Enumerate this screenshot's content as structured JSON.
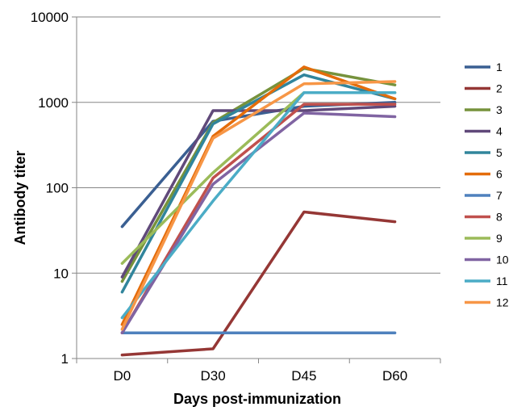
{
  "chart_data": {
    "type": "line",
    "title": "",
    "xlabel": "Days post-immunization",
    "ylabel": "Antibody titer",
    "categories": [
      "D0",
      "D30",
      "D45",
      "D60"
    ],
    "y_scale": "log",
    "ylim": [
      1,
      10000
    ],
    "y_ticks": [
      "1",
      "10",
      "100",
      "1000",
      "10000"
    ],
    "y_tick_values": [
      1,
      10,
      100,
      1000,
      10000
    ],
    "grid": true,
    "legend": "right",
    "series": [
      {
        "name": "1",
        "color": "#3A5F92",
        "values": [
          35,
          600,
          900,
          1000
        ]
      },
      {
        "name": "2",
        "color": "#953735",
        "values": [
          1.1,
          1.3,
          52,
          40
        ]
      },
      {
        "name": "3",
        "color": "#76923C",
        "values": [
          8,
          580,
          2500,
          1600
        ]
      },
      {
        "name": "4",
        "color": "#60497A",
        "values": [
          9,
          800,
          800,
          900
        ]
      },
      {
        "name": "5",
        "color": "#31859C",
        "values": [
          6,
          560,
          2100,
          1100
        ]
      },
      {
        "name": "6",
        "color": "#E46C0A",
        "values": [
          2.5,
          400,
          2600,
          1100
        ]
      },
      {
        "name": "7",
        "color": "#4F81BD",
        "values": [
          2,
          2,
          2,
          2
        ]
      },
      {
        "name": "8",
        "color": "#C0504D",
        "values": [
          2,
          130,
          950,
          950
        ]
      },
      {
        "name": "9",
        "color": "#9BBB59",
        "values": [
          13,
          150,
          1300,
          1300
        ]
      },
      {
        "name": "10",
        "color": "#8064A2",
        "values": [
          2,
          110,
          750,
          680
        ]
      },
      {
        "name": "11",
        "color": "#4BACC6",
        "values": [
          3,
          70,
          1300,
          1300
        ]
      },
      {
        "name": "12",
        "color": "#F79646",
        "values": [
          2.2,
          380,
          1650,
          1750
        ]
      }
    ]
  }
}
